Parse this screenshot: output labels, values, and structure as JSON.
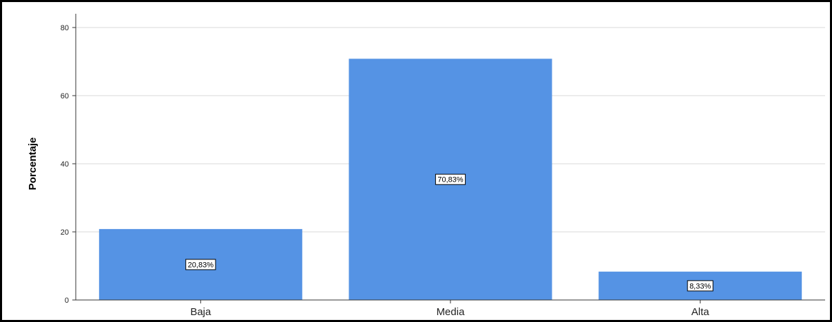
{
  "chart_data": {
    "type": "bar",
    "categories": [
      "Baja",
      "Media",
      "Alta"
    ],
    "values": [
      20.83,
      70.83,
      8.33
    ],
    "data_labels": [
      "20,83%",
      "70,83%",
      "8,33%"
    ],
    "xlabel": "",
    "ylabel": "Porcentaje",
    "ylim": [
      0,
      80
    ],
    "yticks": [
      0,
      20,
      40,
      60,
      80
    ],
    "grid": true,
    "bar_color": "#5593e4",
    "grid_color": "#d9d9d9"
  }
}
